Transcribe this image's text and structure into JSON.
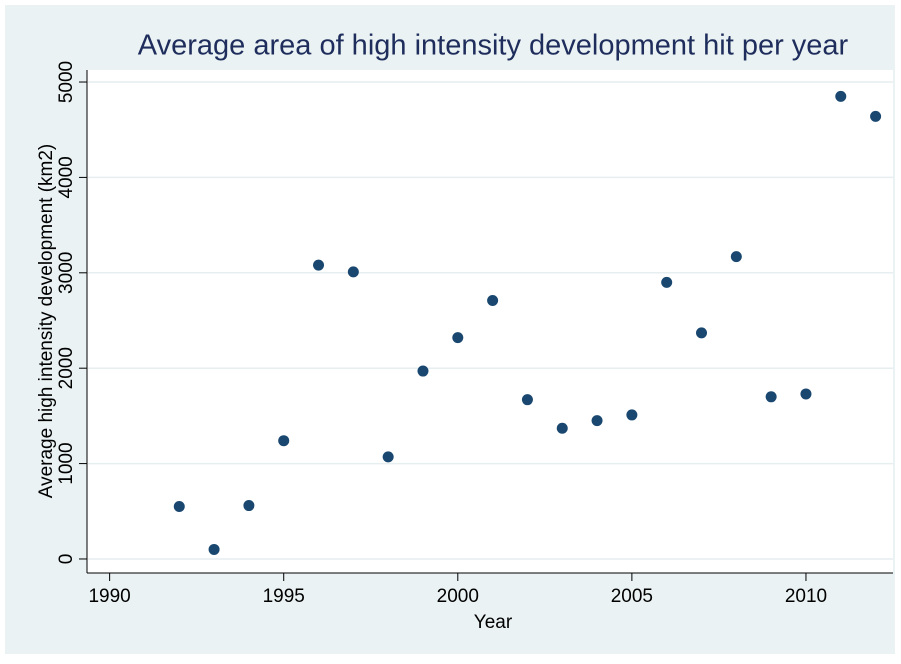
{
  "chart_data": {
    "type": "scatter",
    "title": "Average area of high intensity development hit per year",
    "x_label": "Year",
    "y_label": "Average high intensity development (km2)",
    "color": "#1a476f",
    "x": [
      1992,
      1993,
      1994,
      1995,
      1996,
      1997,
      1998,
      1999,
      2000,
      2001,
      2002,
      2003,
      2004,
      2005,
      2006,
      2007,
      2008,
      2009,
      2010,
      2011,
      2012
    ],
    "values": [
      550,
      100,
      560,
      1240,
      3080,
      3010,
      1070,
      1970,
      2320,
      2710,
      1670,
      1370,
      1450,
      1510,
      2900,
      2370,
      3170,
      1700,
      1730,
      4850,
      4640
    ],
    "xlim": [
      1989.35,
      2012.5
    ],
    "xticks": [
      1990,
      1995,
      2000,
      2005,
      2010
    ],
    "ylim": [
      -147,
      5126
    ],
    "yticks": [
      0,
      1000,
      2000,
      3000,
      4000,
      5000
    ],
    "grid": true
  }
}
